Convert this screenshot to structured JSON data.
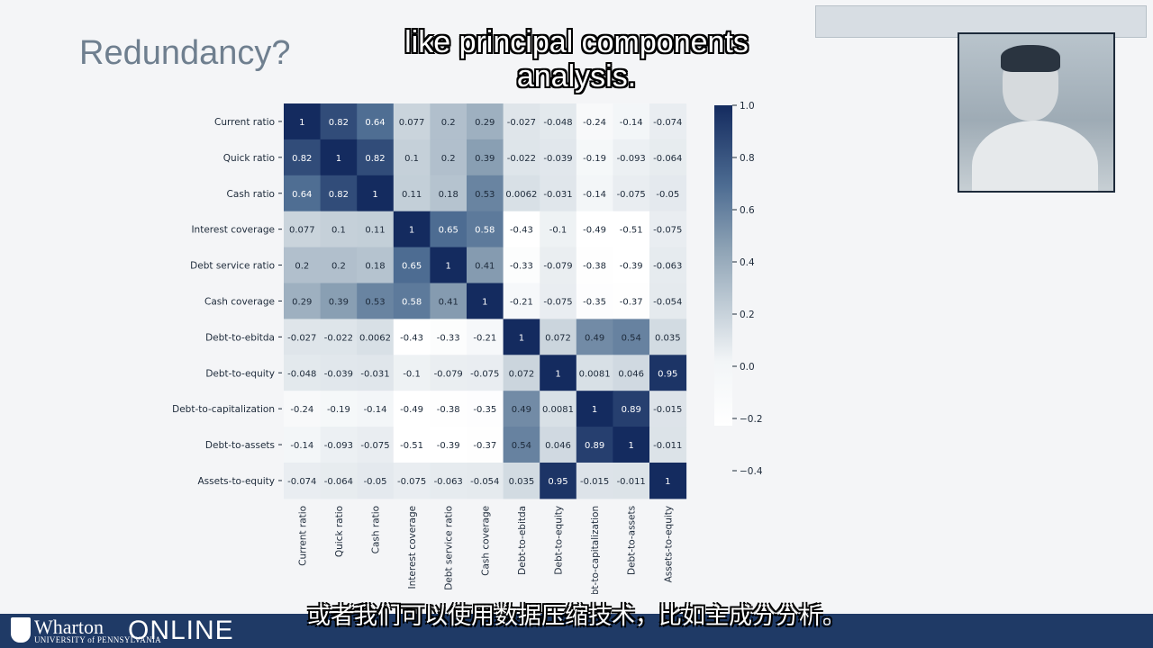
{
  "slide": {
    "title": "Redundancy?",
    "caption_en": "like principal components analysis.",
    "caption_zh": "或者我们可以使用数据压缩技术，比如主成分分析。"
  },
  "branding": {
    "word": "Wharton",
    "sub": "UNIVERSITY of PENNSYLVANIA",
    "online": "ONLINE"
  },
  "colors": {
    "heat_low": "#ffffff",
    "heat_high": "#142b5f",
    "bar": "#1f3a66"
  },
  "chart_data": {
    "type": "heatmap",
    "labels": [
      "Current ratio",
      "Quick ratio",
      "Cash ratio",
      "Interest coverage",
      "Debt service ratio",
      "Cash coverage",
      "Debt-to-ebitda",
      "Debt-to-equity",
      "Debt-to-capitalization",
      "Debt-to-assets",
      "Assets-to-equity"
    ],
    "values": [
      [
        1,
        0.82,
        0.64,
        0.077,
        0.2,
        0.29,
        -0.027,
        -0.048,
        -0.24,
        -0.14,
        -0.074
      ],
      [
        0.82,
        1,
        0.82,
        0.1,
        0.2,
        0.39,
        -0.022,
        -0.039,
        -0.19,
        -0.093,
        -0.064
      ],
      [
        0.64,
        0.82,
        1,
        0.11,
        0.18,
        0.53,
        0.0062,
        -0.031,
        -0.14,
        -0.075,
        -0.05
      ],
      [
        0.077,
        0.1,
        0.11,
        1,
        0.65,
        0.58,
        -0.43,
        -0.1,
        -0.49,
        -0.51,
        -0.075
      ],
      [
        0.2,
        0.2,
        0.18,
        0.65,
        1,
        0.41,
        -0.33,
        -0.079,
        -0.38,
        -0.39,
        -0.063
      ],
      [
        0.29,
        0.39,
        0.53,
        0.58,
        0.41,
        1,
        -0.21,
        -0.075,
        -0.35,
        -0.37,
        -0.054
      ],
      [
        -0.027,
        -0.022,
        0.0062,
        -0.43,
        -0.33,
        -0.21,
        1,
        0.072,
        0.49,
        0.54,
        0.035
      ],
      [
        -0.048,
        -0.039,
        -0.031,
        -0.1,
        -0.079,
        -0.075,
        0.072,
        1,
        0.0081,
        0.046,
        0.95
      ],
      [
        -0.24,
        -0.19,
        -0.14,
        -0.49,
        -0.38,
        -0.35,
        0.49,
        0.0081,
        1,
        0.89,
        -0.015
      ],
      [
        -0.14,
        -0.093,
        -0.075,
        -0.51,
        -0.39,
        -0.37,
        0.54,
        0.046,
        0.89,
        1,
        -0.011
      ],
      [
        -0.074,
        -0.064,
        -0.05,
        -0.075,
        -0.063,
        -0.054,
        0.035,
        0.95,
        -0.015,
        -0.011,
        1
      ]
    ],
    "colorbar": {
      "range": [
        -0.4,
        1.0
      ],
      "ticks": [
        "1.0",
        "0.8",
        "0.6",
        "0.4",
        "0.2",
        "0.0",
        "−0.2",
        "−0.4"
      ]
    },
    "title": ""
  }
}
